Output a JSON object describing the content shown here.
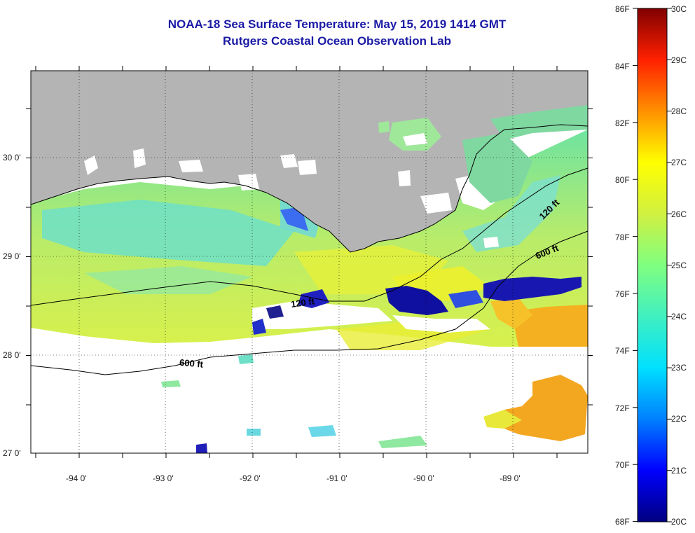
{
  "header": {
    "title": "NOAA-18 Sea Surface Temperature:  May 15, 2019 1414 GMT",
    "subtitle": "Rutgers Coastal Ocean Observation Lab"
  },
  "map": {
    "lon_labels": [
      "-94 0'",
      "-93 0'",
      "-92 0'",
      "-91 0'",
      "-90 0'",
      "-89 0'"
    ],
    "lat_labels": [
      "30 0'",
      "29 0'",
      "28 0'",
      "27 0'"
    ],
    "contour_labels": [
      "120 ft",
      "600 ft",
      "120 ft",
      "600 ft"
    ],
    "colors": {
      "land": "#b4b4b4",
      "nodata": "#ffffff",
      "frame": "#000000"
    }
  },
  "colorbar": {
    "f_labels": [
      "86F",
      "84F",
      "82F",
      "80F",
      "78F",
      "76F",
      "74F",
      "72F",
      "70F",
      "68F"
    ],
    "c_labels": [
      "30C",
      "29C",
      "28C",
      "27C",
      "26C",
      "25C",
      "24C",
      "23C",
      "22C",
      "21C",
      "20C"
    ],
    "colors": [
      "#000080",
      "#0000ff",
      "#0080ff",
      "#00e0ff",
      "#40f0c0",
      "#80ff80",
      "#d0f040",
      "#ffff00",
      "#ff9000",
      "#ff2000",
      "#800000"
    ]
  }
}
